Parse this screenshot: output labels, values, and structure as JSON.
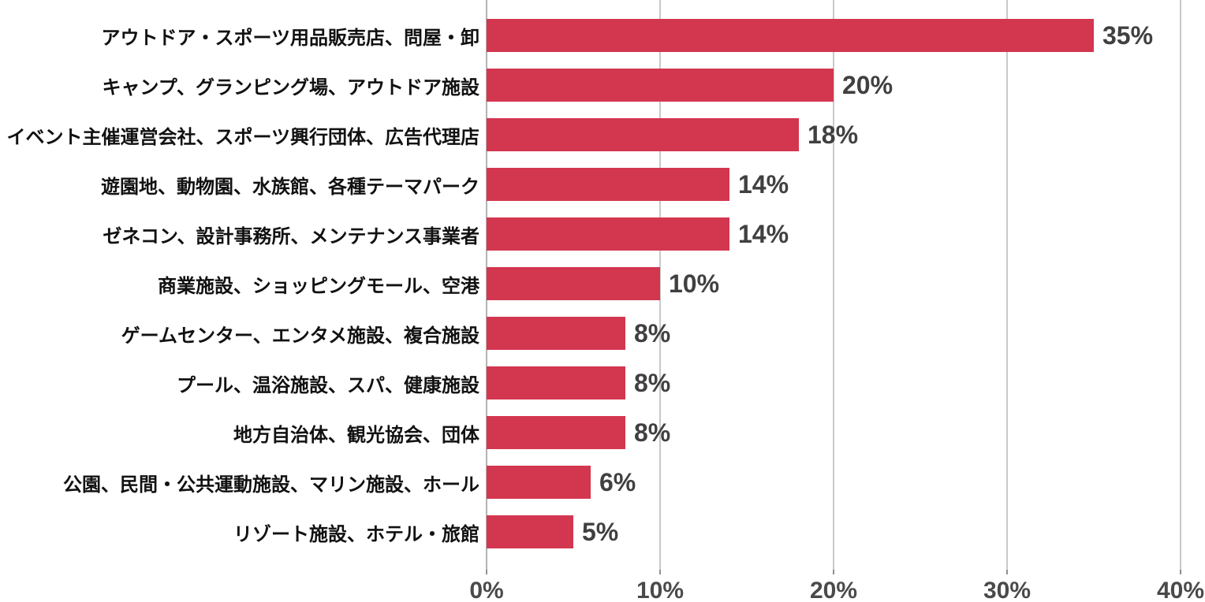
{
  "chart_data": {
    "type": "bar",
    "orientation": "horizontal",
    "title": "",
    "xlabel": "",
    "ylabel": "",
    "categories": [
      "アウトドア・スポーツ用品販売店、問屋・卸",
      "キャンプ、グランピング場、アウトドア施設",
      "イベント主催運営会社、スポーツ興行団体、広告代理店",
      "遊園地、動物園、水族館、各種テーマパーク",
      "ゼネコン、設計事務所、メンテナンス事業者",
      "商業施設、ショッピングモール、空港",
      "ゲームセンター、エンタメ施設、複合施設",
      "プール、温浴施設、スパ、健康施設",
      "地方自治体、観光協会、団体",
      "公園、民間・公共運動施設、マリン施設、ホール",
      "リゾート施設、ホテル・旅館"
    ],
    "values": [
      35,
      20,
      18,
      14,
      14,
      10,
      8,
      8,
      8,
      6,
      5
    ],
    "value_labels": [
      "35%",
      "20%",
      "18%",
      "14%",
      "14%",
      "10%",
      "8%",
      "8%",
      "8%",
      "6%",
      "5%"
    ],
    "x_ticks": [
      {
        "value": 0,
        "label": "0%"
      },
      {
        "value": 10,
        "label": "10%"
      },
      {
        "value": 20,
        "label": "20%"
      },
      {
        "value": 30,
        "label": "30%"
      },
      {
        "value": 40,
        "label": "40%"
      }
    ],
    "xlim": [
      0,
      40
    ],
    "grid": "vertical-only",
    "legend": "none",
    "colors": {
      "bar": "#d3364f",
      "value_label": "#404040",
      "tick_label": "#4a4a4a",
      "category_label": "#111111",
      "gridline": "#c9c9c9",
      "axis_line": "#b3b3b3",
      "tick_mark": "#8f8f8f",
      "background": "#ffffff"
    }
  }
}
